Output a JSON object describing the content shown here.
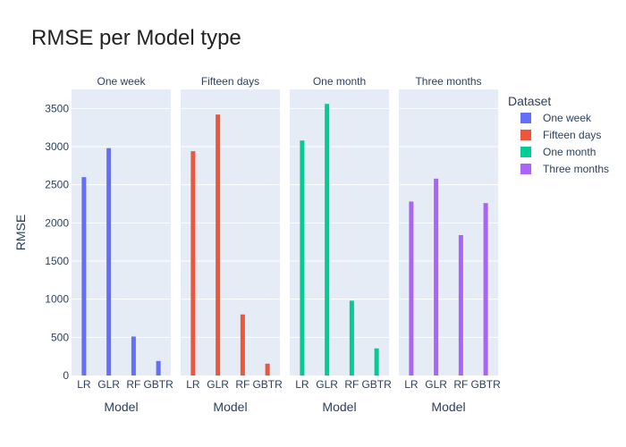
{
  "chart_data": {
    "type": "bar",
    "title": "RMSE per Model type",
    "ylabel": "RMSE",
    "xlabel": "Model",
    "ylim": [
      0,
      3750
    ],
    "yticks": [
      0,
      500,
      1000,
      1500,
      2000,
      2500,
      3000,
      3500
    ],
    "categories": [
      "LR",
      "GLR",
      "RF",
      "GBTR"
    ],
    "legend": {
      "title": "Dataset",
      "placement": "right"
    },
    "series": [
      {
        "name": "One week",
        "facet": "One week",
        "color": "#636efa",
        "values": [
          2600,
          2980,
          510,
          190
        ]
      },
      {
        "name": "Fifteen days",
        "facet": "Fifteen days",
        "color": "#ef553b",
        "values": [
          2940,
          3420,
          800,
          155
        ]
      },
      {
        "name": "One month",
        "facet": "One month",
        "color": "#00cc96",
        "values": [
          3080,
          3560,
          980,
          355
        ]
      },
      {
        "name": "Three months",
        "facet": "Three months",
        "color": "#ab63fa",
        "values": [
          2280,
          2580,
          1840,
          2260
        ]
      }
    ]
  }
}
